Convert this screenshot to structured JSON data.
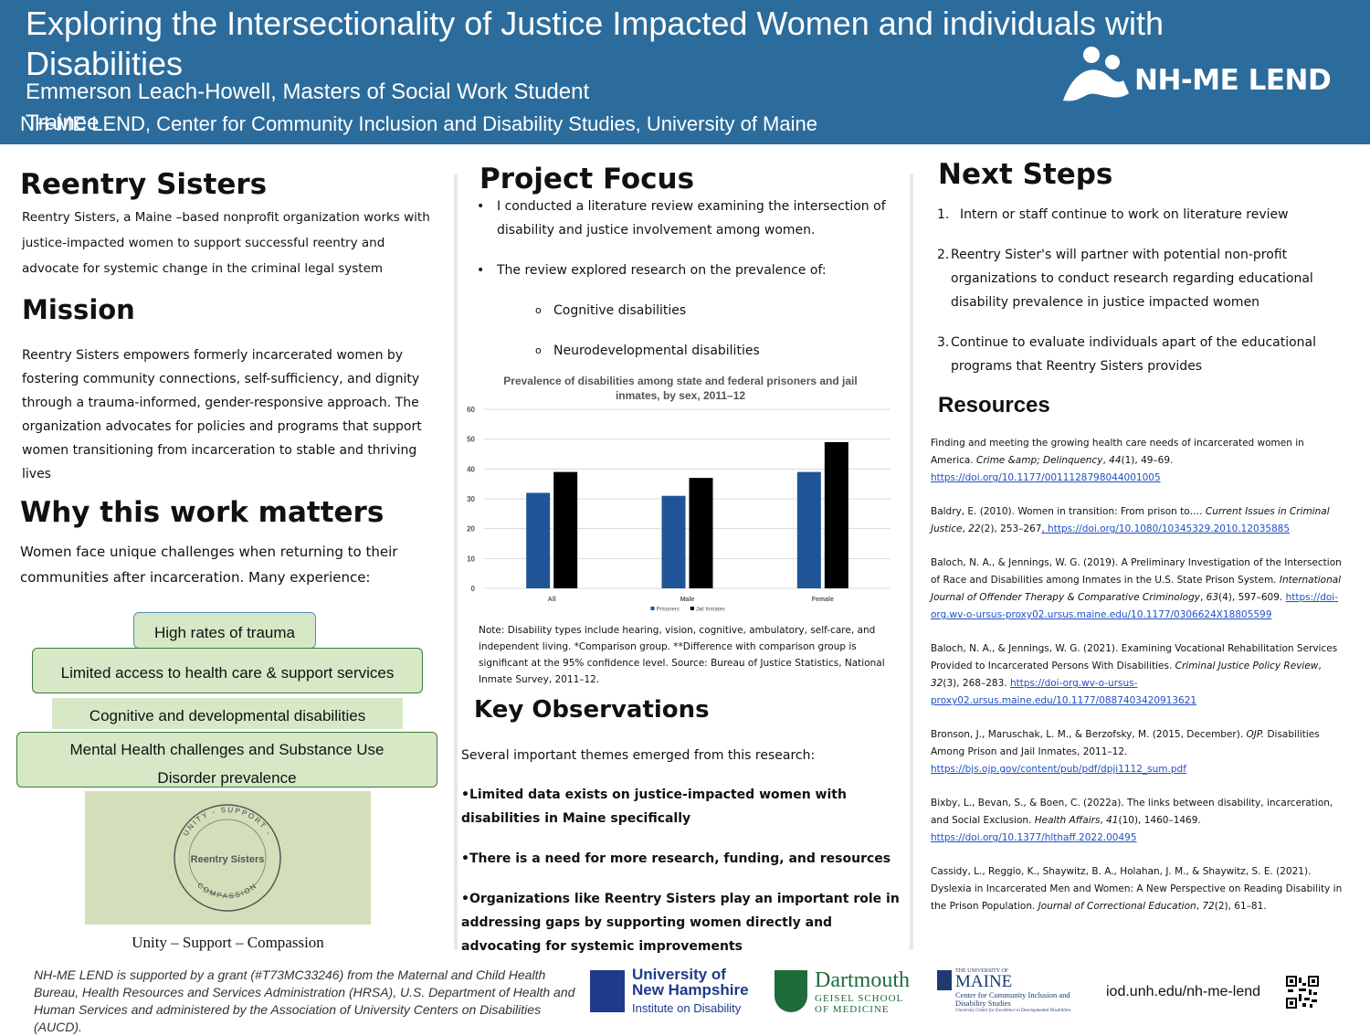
{
  "header": {
    "title": "Exploring the Intersectionality of Justice Impacted Women and individuals with Disabilities",
    "author": "Emmerson Leach-Howell, Masters of Social Work Student Trainee",
    "affiliation": "NH-ME LEND, Center for Community Inclusion and Disability Studies, University of Maine",
    "logo_text": "NH-ME LEND"
  },
  "reentry": {
    "heading": "Reentry Sisters",
    "text": "Reentry Sisters, a Maine –based nonprofit organization works with justice-impacted women to support successful reentry and advocate for systemic change in the criminal legal system"
  },
  "mission": {
    "heading": "Mission",
    "text": "Reentry Sisters empowers formerly incarcerated women by fostering community connections, self-sufficiency, and dignity through a trauma-informed, gender-responsive approach. The organization advocates for policies and programs that support women transitioning from incarceration to stable and thriving lives"
  },
  "why": {
    "heading": "Why this work matters",
    "text": "Women face unique challenges when returning to their communities after incarceration. Many experience:",
    "boxes": [
      "High rates of trauma",
      "Limited access to health care & support services",
      "Cognitive and developmental disabilities",
      "Mental Health challenges and Substance Use Disorder prevalence"
    ],
    "logo_ring_top": "UNITY - SUPPORT -",
    "logo_ring_bottom": "COMPASSION",
    "logo_label": "Reentry Sisters",
    "logo_caption": "Unity – Support – Compassion"
  },
  "project_focus": {
    "heading": "Project Focus",
    "bullets": [
      "I conducted a literature review examining the intersection of disability and justice involvement among women.",
      "The review explored research on the prevalence of:"
    ],
    "sub_bullets": [
      "Cognitive disabilities",
      "Neurodevelopmental disabilities"
    ]
  },
  "chart_data": {
    "type": "bar",
    "title": "Prevalence of disabilities among state and federal prisoners and jail inmates, by sex, 2011–12",
    "categories": [
      "All",
      "Male",
      "Female"
    ],
    "series": [
      {
        "name": "Prisoners",
        "color": "#1f5597",
        "values": [
          32,
          31,
          39
        ]
      },
      {
        "name": "Jail Inmates",
        "color": "#000000",
        "values": [
          39,
          37,
          49
        ]
      }
    ],
    "ylim": [
      0,
      60
    ],
    "yticks": [
      0,
      10,
      20,
      30,
      40,
      50,
      60
    ],
    "grid": true,
    "legend": "bottom"
  },
  "chart_note": "Note: Disability types include hearing, vision, cognitive, ambulatory, self-care, and independent living. *Comparison group. **Difference with comparison group is significant at the 95% confidence level. Source: Bureau of Justice Statistics, National Inmate Survey, 2011–12.",
  "key_observations": {
    "heading": "Key Observations",
    "intro": "Several important themes emerged from this research:",
    "points": [
      "•Limited data exists on justice-impacted women with disabilities in Maine specifically",
      "•There is a need for more research, funding, and resources",
      "•Organizations like Reentry Sisters play an important role in addressing gaps by supporting women directly and advocating for systemic improvements"
    ]
  },
  "next_steps": {
    "heading": "Next Steps",
    "items": [
      {
        "number": "1.",
        "text": "Intern or staff continue to work on literature review"
      },
      {
        "number": "2.",
        "text": "Reentry Sister's will partner with potential non-profit organizations to conduct research regarding educational disability prevalence in justice impacted women"
      },
      {
        "number": "3.",
        "text": "Continue to evaluate individuals apart of the educational programs that Reentry Sisters provides"
      }
    ]
  },
  "resources": {
    "heading": "Resources",
    "refs": [
      [
        {
          "t": "Finding and meeting the growing  health care needs of incarcerated women in America. "
        },
        {
          "t": "Crime &amp; Delinquency",
          "style": "italic"
        },
        {
          "t": ", "
        },
        {
          "t": "44",
          "style": "italic"
        },
        {
          "t": "(1), 49–69. "
        },
        {
          "t": "https://doi.org/10.1177/0011128798044001005 ",
          "style": "link"
        }
      ],
      [
        {
          "t": " Baldry, E. (2010). Women in transition: From prison to…. "
        },
        {
          "t": "Current Issues in Criminal Justice",
          "style": "italic"
        },
        {
          "t": ", "
        },
        {
          "t": "22",
          "style": "italic"
        },
        {
          "t": "(2), 253–267"
        },
        {
          "t": ", https://doi.org/10.1080/10345329.2010.12035885 ",
          "style": "link"
        }
      ],
      [
        {
          "t": "Baloch, N. A., & Jennings, W. G. (2019). A Preliminary Investigation of the Intersection of Race and Disabilities among Inmates in the U.S. State Prison System. "
        },
        {
          "t": "International Journal of Offender Therapy & Comparative Criminology",
          "style": "italic"
        },
        {
          "t": ", "
        },
        {
          "t": "63",
          "style": "italic"
        },
        {
          "t": "(4), 597–609. "
        },
        {
          "t": "https://doi-org.wv-o-ursus-proxy02.ursus.maine.edu/10.1177/0306624X18805599",
          "style": "link"
        }
      ],
      [
        {
          "t": "  Baloch, N. A., & Jennings, W. G. (2021). Examining Vocational Rehabilitation Services Provided to Incarcerated Persons With Disabilities. "
        },
        {
          "t": "Criminal Justice Policy Review",
          "style": "italic"
        },
        {
          "t": ", "
        },
        {
          "t": "32",
          "style": "italic"
        },
        {
          "t": "(3), 268–283. "
        },
        {
          "t": "https://doi-org.wv-o-ursus-proxy02.ursus.maine.edu/10.1177/0887403420913621",
          "style": "link"
        }
      ],
      [
        {
          "t": " Bronson, J., Maruschak, L. M., & Berzofsky, M. (2015, December). "
        },
        {
          "t": "OJP.",
          "style": "italic"
        },
        {
          "t": " Disabilities Among Prison and Jail Inmates, 2011–12. "
        },
        {
          "t": "https://bjs.ojp.gov/content/pub/pdf/dpji1112_sum.pdf ",
          "style": "link"
        }
      ],
      [
        {
          "t": " Bixby, L., Bevan, S., & Boen, C. (2022a). The links between disability, incarceration, and Social Exclusion. "
        },
        {
          "t": "Health Affairs",
          "style": "italic"
        },
        {
          "t": ", "
        },
        {
          "t": "41",
          "style": "italic"
        },
        {
          "t": "(10), 1460–1469. "
        },
        {
          "t": "https://doi.org/10.1377/hlthaff.2022.00495 ",
          "style": "link"
        }
      ],
      [
        {
          "t": "Cassidy, L., Reggio, K., Shaywitz, B. A., Holahan, J. M., & Shaywitz, S. E. (2021). Dyslexia in Incarcerated Men and Women: A New Perspective on Reading Disability in the Prison Population. "
        },
        {
          "t": "Journal of Correctional Education",
          "style": "italic"
        },
        {
          "t": ", "
        },
        {
          "t": "72",
          "style": "italic"
        },
        {
          "t": "(2), 61–81."
        }
      ]
    ]
  },
  "footer": {
    "funding": "NH-ME LEND is supported by a grant (#T73MC33246) from the Maternal and Child Health Bureau, Health Resources and Services Administration (HRSA), U.S. Department of Health and Human Services and administered by the Association of University Centers on Disabilities (AUCD).",
    "unh_name": "University of New Hampshire",
    "unh_sub": "Institute on Disability",
    "dartmouth_name": "Dartmouth",
    "dartmouth_sub": "GEISEL SCHOOL OF MEDICINE",
    "maine_top": "THE UNIVERSITY OF",
    "maine_name": "MAINE",
    "maine_sub": "Center for Community Inclusion and Disability Studies",
    "maine_tag": "University Center for Excellence in Developmental Disabilities",
    "url": "iod.unh.edu/nh-me-lend"
  }
}
